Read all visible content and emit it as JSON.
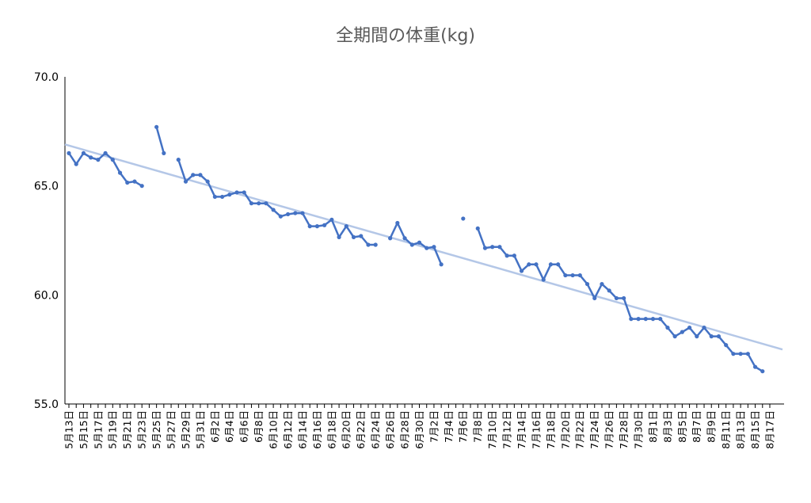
{
  "chart_data": {
    "type": "line",
    "title": "全期間の体重(kg)",
    "xlabel": "",
    "ylabel": "",
    "ylim": [
      55.0,
      70.0
    ],
    "yticks": [
      "70.0",
      "65.0",
      "60.0",
      "55.0"
    ],
    "x": [
      "5月13日",
      "5月14日",
      "5月15日",
      "5月16日",
      "5月17日",
      "5月18日",
      "5月19日",
      "5月20日",
      "5月21日",
      "5月22日",
      "5月23日",
      "5月24日",
      "5月25日",
      "5月26日",
      "5月27日",
      "5月28日",
      "5月29日",
      "5月30日",
      "5月31日",
      "6月1日",
      "6月2日",
      "6月3日",
      "6月4日",
      "6月5日",
      "6月6日",
      "6月7日",
      "6月8日",
      "6月9日",
      "6月10日",
      "6月11日",
      "6月12日",
      "6月13日",
      "6月14日",
      "6月15日",
      "6月16日",
      "6月17日",
      "6月18日",
      "6月19日",
      "6月20日",
      "6月21日",
      "6月22日",
      "6月23日",
      "6月24日",
      "6月25日",
      "6月26日",
      "6月27日",
      "6月28日",
      "6月29日",
      "6月30日",
      "7月1日",
      "7月2日",
      "7月3日",
      "7月4日",
      "7月5日",
      "7月6日",
      "7月7日",
      "7月8日",
      "7月9日",
      "7月10日",
      "7月11日",
      "7月12日",
      "7月13日",
      "7月14日",
      "7月15日",
      "7月16日",
      "7月17日",
      "7月18日",
      "7月19日",
      "7月20日",
      "7月21日",
      "7月22日",
      "7月23日",
      "7月24日",
      "7月25日",
      "7月26日",
      "7月27日",
      "7月28日",
      "7月29日",
      "7月30日",
      "7月31日",
      "8月1日",
      "8月2日",
      "8月3日",
      "8月4日",
      "8月5日",
      "8月6日",
      "8月7日",
      "8月8日",
      "8月9日",
      "8月10日",
      "8月11日",
      "8月12日",
      "8月13日",
      "8月14日",
      "8月15日",
      "8月16日",
      "8月17日"
    ],
    "x_tick_labels": [
      "5月13日",
      "5月15日",
      "5月17日",
      "5月19日",
      "5月21日",
      "5月23日",
      "5月25日",
      "5月27日",
      "5月29日",
      "5月31日",
      "6月2日",
      "6月4日",
      "6月6日",
      "6月8日",
      "6月10日",
      "6月12日",
      "6月14日",
      "6月16日",
      "6月18日",
      "6月20日",
      "6月22日",
      "6月24日",
      "6月26日",
      "6月28日",
      "6月30日",
      "7月2日",
      "7月4日",
      "7月6日",
      "7月8日",
      "7月10日",
      "7月12日",
      "7月14日",
      "7月16日",
      "7月18日",
      "7月20日",
      "7月22日",
      "7月24日",
      "7月26日",
      "7月28日",
      "7月30日",
      "8月1日",
      "8月3日",
      "8月5日",
      "8月7日",
      "8月9日",
      "8月11日",
      "8月13日",
      "8月15日",
      "8月17日"
    ],
    "series": [
      {
        "values": [
          66.5,
          66.0,
          66.5,
          66.3,
          66.2,
          66.5,
          66.2,
          65.6,
          65.15,
          65.2,
          65.0,
          null,
          67.7,
          66.5,
          null,
          66.2,
          65.2,
          65.5,
          65.5,
          65.2,
          64.5,
          64.5,
          64.6,
          64.7,
          64.7,
          64.2,
          64.2,
          64.2,
          63.9,
          63.6,
          63.7,
          63.75,
          63.75,
          63.15,
          63.15,
          63.2,
          63.45,
          62.65,
          63.15,
          62.65,
          62.7,
          62.3,
          62.3,
          null,
          62.6,
          63.3,
          62.6,
          62.3,
          62.4,
          62.15,
          62.2,
          61.4,
          null,
          null,
          63.5,
          null,
          63.05,
          62.15,
          62.2,
          62.2,
          61.8,
          61.8,
          61.1,
          61.4,
          61.4,
          60.7,
          61.4,
          61.4,
          60.9,
          60.9,
          60.9,
          60.5,
          59.85,
          60.5,
          60.2,
          59.85,
          59.85,
          58.9,
          58.9,
          58.9,
          58.9,
          58.9,
          58.5,
          58.1,
          58.3,
          58.5,
          58.1,
          58.5,
          58.1,
          58.1,
          57.7,
          57.3,
          57.3,
          57.3,
          56.7,
          56.5,
          null
        ],
        "color": "#4472C4"
      }
    ],
    "trendline": {
      "start": 66.9,
      "end": 57.5,
      "color": "#B4C7E7"
    },
    "grid": false,
    "legend": "none"
  }
}
